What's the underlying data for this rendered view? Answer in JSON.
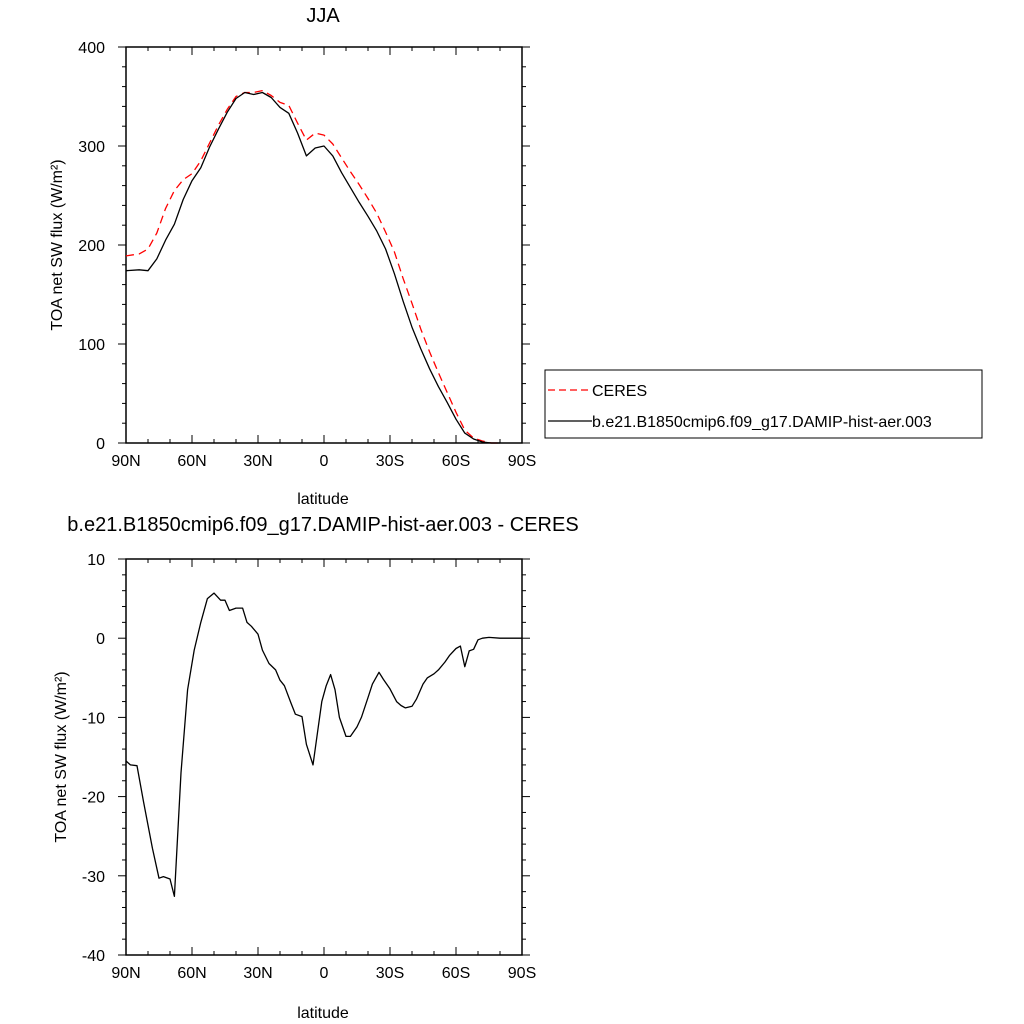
{
  "chart_data": [
    {
      "type": "line",
      "title": "JJA",
      "xlabel": "latitude",
      "ylabel": "TOA net SW flux (W/m²)",
      "xlim": [
        90,
        -90
      ],
      "ylim": [
        0,
        400
      ],
      "xticks": [
        90,
        60,
        30,
        0,
        -30,
        -60,
        -90
      ],
      "xtick_labels": [
        "90N",
        "60N",
        "30N",
        "0",
        "30S",
        "60S",
        "90S"
      ],
      "yticks": [
        0,
        100,
        200,
        300,
        400
      ],
      "ytick_labels": [
        "0",
        "100",
        "200",
        "300",
        "400"
      ],
      "legend_position": "right",
      "series": [
        {
          "name": "CERES",
          "color": "#ff0000",
          "dash": "dashed",
          "x": [
            90,
            84,
            80,
            76,
            72,
            68,
            64,
            60,
            56,
            52,
            48,
            44,
            40,
            36,
            32,
            28,
            24,
            20,
            16,
            12,
            8,
            4,
            0,
            -4,
            -8,
            -12,
            -16,
            -20,
            -24,
            -28,
            -32,
            -36,
            -40,
            -44,
            -48,
            -52,
            -56,
            -60,
            -64,
            -68,
            -72,
            -76,
            -80
          ],
          "y": [
            189,
            191,
            196,
            212,
            237,
            255,
            266,
            272,
            285,
            303,
            321,
            337,
            350,
            354,
            354,
            356,
            351,
            344,
            341,
            323,
            306,
            313,
            311,
            302,
            288,
            274,
            261,
            247,
            232,
            213,
            193,
            166,
            141,
            115,
            92,
            71,
            51,
            31,
            13,
            5,
            2,
            0,
            0
          ]
        },
        {
          "name": "b.e21.B1850cmip6.f09_g17.DAMIP-hist-aer.003",
          "color": "#000000",
          "dash": "solid",
          "x": [
            90,
            84,
            80,
            76,
            72,
            68,
            64,
            60,
            56,
            52,
            48,
            44,
            40,
            36,
            32,
            28,
            24,
            20,
            16,
            12,
            8,
            4,
            0,
            -4,
            -8,
            -12,
            -16,
            -20,
            -24,
            -28,
            -32,
            -36,
            -40,
            -44,
            -48,
            -52,
            -56,
            -60,
            -64,
            -68,
            -72,
            -76,
            -80
          ],
          "y": [
            174,
            175,
            174,
            186,
            205,
            221,
            246,
            265,
            278,
            299,
            317,
            334,
            348,
            354,
            352,
            354,
            349,
            339,
            333,
            313,
            290,
            298,
            300,
            290,
            273,
            258,
            243,
            229,
            214,
            196,
            171,
            143,
            117,
            95,
            75,
            57,
            41,
            24,
            10,
            4,
            1,
            0,
            0
          ]
        }
      ]
    },
    {
      "type": "line",
      "title": "b.e21.B1850cmip6.f09_g17.DAMIP-hist-aer.003 - CERES",
      "xlabel": "latitude",
      "ylabel": "TOA net SW flux (W/m²)",
      "xlim": [
        90,
        -90
      ],
      "ylim": [
        -40,
        10
      ],
      "xticks": [
        90,
        60,
        30,
        0,
        -30,
        -60,
        -90
      ],
      "xtick_labels": [
        "90N",
        "60N",
        "30N",
        "0",
        "30S",
        "60S",
        "90S"
      ],
      "yticks": [
        -40,
        -30,
        -20,
        -10,
        0,
        10
      ],
      "ytick_labels": [
        "-40",
        "-30",
        "-20",
        "-10",
        "0",
        "10"
      ],
      "series": [
        {
          "color": "#000000",
          "dash": "solid",
          "x": [
            90,
            88,
            85,
            82,
            78,
            75,
            73,
            70,
            68,
            65,
            62,
            59,
            56,
            53,
            50,
            47,
            45,
            43,
            40,
            37,
            35,
            33,
            30,
            28,
            25,
            22,
            20,
            18,
            15,
            13,
            10,
            8,
            5,
            3,
            1,
            -1,
            -3,
            -5,
            -7,
            -10,
            -12,
            -15,
            -17,
            -20,
            -22,
            -25,
            -27,
            -30,
            -33,
            -35,
            -37,
            -40,
            -42,
            -45,
            -47,
            -50,
            -52,
            -55,
            -57,
            -60,
            -62,
            -64,
            -66,
            -68,
            -70,
            -72,
            -75,
            -80,
            -85,
            -90
          ],
          "y": [
            -15.5,
            -16,
            -16.1,
            -20.7,
            -26.5,
            -30.3,
            -30.1,
            -30.4,
            -32.6,
            -17,
            -6.5,
            -1.5,
            2,
            5,
            5.7,
            4.8,
            4.8,
            3.5,
            3.8,
            3.8,
            2,
            1.5,
            0.5,
            -1.5,
            -3.2,
            -4,
            -5.3,
            -6,
            -8.2,
            -9.6,
            -9.9,
            -13.4,
            -16,
            -12,
            -8,
            -6,
            -4.6,
            -6.5,
            -10,
            -12.4,
            -12.4,
            -11.2,
            -10,
            -7.5,
            -5.8,
            -4.3,
            -5.2,
            -6.4,
            -8,
            -8.5,
            -8.8,
            -8.6,
            -7.7,
            -5.8,
            -5,
            -4.5,
            -4,
            -3,
            -2.2,
            -1.3,
            -1,
            -3.6,
            -1.6,
            -1.4,
            -0.2,
            0,
            0.1,
            0,
            0,
            0
          ]
        }
      ]
    }
  ]
}
